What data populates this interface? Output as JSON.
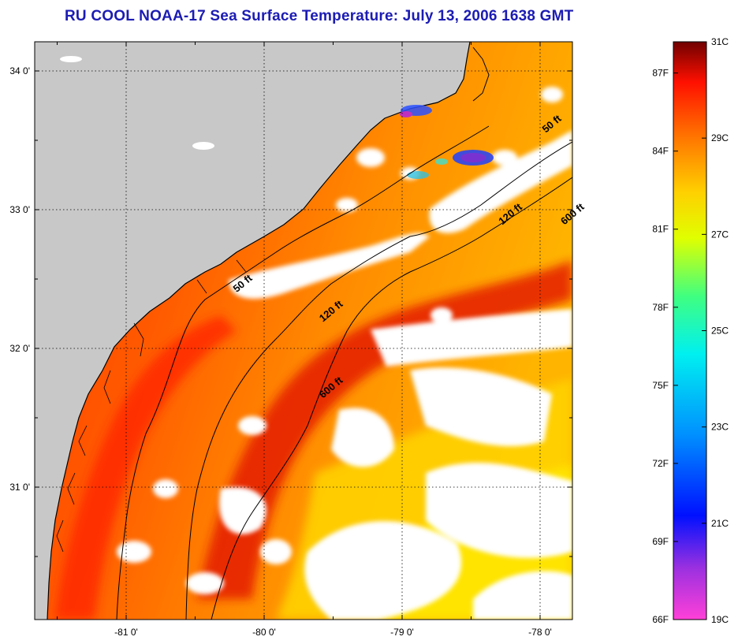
{
  "title": "RU COOL  NOAA-17  Sea Surface Temperature:  July 13, 2006 1638 GMT",
  "map": {
    "lat_ticks": [
      {
        "value": 34,
        "label": "34 0'"
      },
      {
        "value": 33,
        "label": "33 0'"
      },
      {
        "value": 32,
        "label": "32 0'"
      },
      {
        "value": 31,
        "label": "31 0'"
      }
    ],
    "lon_ticks": [
      {
        "value": -81,
        "label": "-81 0'"
      },
      {
        "value": -80,
        "label": "-80 0'"
      },
      {
        "value": -79,
        "label": "-79 0'"
      },
      {
        "value": -78,
        "label": "-78 0'"
      }
    ],
    "contour_labels": [
      {
        "text": "50 ft",
        "lon": -77.9,
        "lat": 33.6
      },
      {
        "text": "120 ft",
        "lon": -78.2,
        "lat": 32.95
      },
      {
        "text": "600 ft",
        "lon": -77.75,
        "lat": 32.95
      },
      {
        "text": "50 ft",
        "lon": -80.14,
        "lat": 32.45
      },
      {
        "text": "120 ft",
        "lon": -79.5,
        "lat": 32.25
      },
      {
        "text": "600 ft",
        "lon": -79.5,
        "lat": 31.7
      }
    ],
    "colors": {
      "land": "#c8c8c8",
      "cloud": "#ffffff",
      "sst_warm": "#ff3a00",
      "sst_mid": "#ff8a00",
      "sst_cool": "#ffd400",
      "sst_core": "#e01e00"
    }
  },
  "colorbar": {
    "fahrenheit": [
      "87F",
      "84F",
      "81F",
      "78F",
      "75F",
      "72F",
      "69F",
      "66F"
    ],
    "celsius": [
      "31C",
      "29C",
      "27C",
      "25C",
      "23C",
      "21C",
      "19C"
    ]
  }
}
